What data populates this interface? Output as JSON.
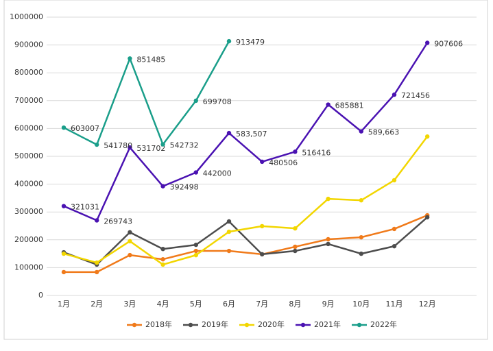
{
  "chart_data": {
    "type": "line",
    "categories": [
      "1月",
      "2月",
      "3月",
      "4月",
      "5月",
      "6月",
      "7月",
      "8月",
      "9月",
      "10月",
      "11月",
      "12月"
    ],
    "ylim": [
      0,
      1000000
    ],
    "yticks": [
      0,
      100000,
      200000,
      300000,
      400000,
      500000,
      600000,
      700000,
      800000,
      900000,
      1000000
    ],
    "grid": true,
    "legend": "bottom",
    "series": [
      {
        "name": "2018年",
        "color": "#f07a1a",
        "values": [
          84000,
          84000,
          145000,
          130000,
          160000,
          160000,
          148000,
          175000,
          202000,
          209000,
          239000,
          288000
        ]
      },
      {
        "name": "2019年",
        "color": "#4d4d4d",
        "values": [
          155000,
          111000,
          227000,
          167000,
          182000,
          266000,
          148000,
          160000,
          185000,
          150000,
          177000,
          281000
        ]
      },
      {
        "name": "2020年",
        "color": "#f2d600",
        "values": [
          150000,
          118000,
          195000,
          111000,
          145000,
          229000,
          249000,
          241000,
          347000,
          342000,
          414000,
          571000
        ]
      },
      {
        "name": "2021年",
        "color": "#4a12b2",
        "values": [
          321031,
          269743,
          531702,
          392498,
          442000,
          583507,
          480506,
          516416,
          685881,
          589663,
          721456,
          907606
        ],
        "value_labels": [
          "321031",
          "269743",
          "531702",
          "392498",
          "442000",
          "583,507",
          "480506",
          "516416",
          "685881",
          "589,663",
          "721456",
          "907606"
        ]
      },
      {
        "name": "2022年",
        "color": "#1a9e8a",
        "values": [
          603007,
          541780,
          851485,
          542732,
          699708,
          913479,
          null,
          null,
          null,
          null,
          null,
          null
        ],
        "value_labels": [
          "603007",
          "541780",
          "851485",
          "542732",
          "699708",
          "913479",
          null,
          null,
          null,
          null,
          null,
          null
        ]
      }
    ]
  }
}
